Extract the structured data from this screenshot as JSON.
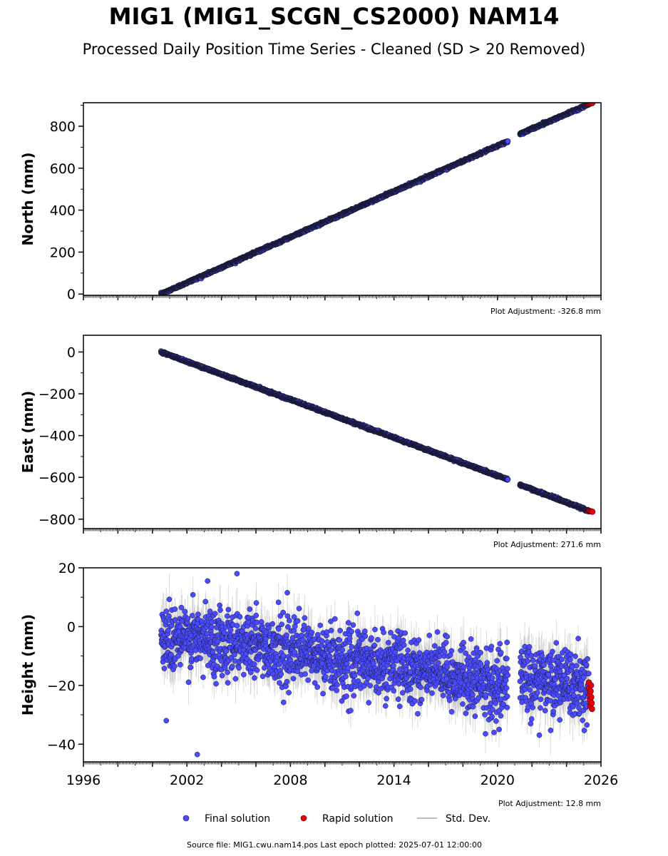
{
  "title": "MIG1 (MIG1_SCGN_CS2000) NAM14",
  "subtitle": "Processed Daily Position Time Series - Cleaned (SD > 20 Removed)",
  "source_note": "Source file: MIG1.cwu.nam14.pos  Last epoch plotted: 2025-07-01 12:00:00",
  "legend": {
    "final_label": "Final solution",
    "rapid_label": "Rapid solution",
    "std_label": "Std. Dev."
  },
  "colors": {
    "final": "#4a4aff",
    "rapid": "#e8000b",
    "std": "#bdbdbd",
    "marker_edge": "#1a1a3a"
  },
  "chart_data": [
    {
      "type": "scatter",
      "ylabel": "North (mm)",
      "plot_adjustment": "Plot Adjustment: -326.8 mm",
      "xlim": [
        1996,
        2026
      ],
      "ylim": [
        -6,
        912
      ],
      "yticks": [
        0,
        200,
        400,
        600,
        800
      ],
      "ytick_labels": [
        "0",
        "200",
        "400",
        "600",
        "800"
      ],
      "xticks": [
        1996,
        2002,
        2008,
        2014,
        2020,
        2026
      ],
      "xtick_labels": [
        "",
        "",
        "",
        "",
        "",
        ""
      ],
      "grid": false,
      "series": [
        {
          "name": "Final solution",
          "trend": [
            [
              2000.5,
              0
            ],
            [
              2020.6,
              728
            ],
            [
              2021.3,
              763
            ],
            [
              2025.3,
              905
            ]
          ],
          "gaps": [
            [
              2020.6,
              2021.3
            ]
          ]
        },
        {
          "name": "Rapid solution",
          "x": [
            2025.3,
            2025.35,
            2025.4,
            2025.45,
            2025.5
          ],
          "y": [
            906,
            908,
            909,
            910,
            911
          ]
        }
      ]
    },
    {
      "type": "scatter",
      "ylabel": "East (mm)",
      "plot_adjustment": "Plot Adjustment: 271.6 mm",
      "xlim": [
        1996,
        2026
      ],
      "ylim": [
        -845,
        80
      ],
      "yticks": [
        0,
        -200,
        -400,
        -600,
        -800
      ],
      "ytick_labels": [
        "0",
        "−200",
        "−400",
        "−600",
        "−800"
      ],
      "xticks": [
        1996,
        2002,
        2008,
        2014,
        2020,
        2026
      ],
      "xtick_labels": [
        "",
        "",
        "",
        "",
        "",
        ""
      ],
      "grid": false,
      "series": [
        {
          "name": "Final solution",
          "trend": [
            [
              2000.5,
              0
            ],
            [
              2020.6,
              -610
            ],
            [
              2021.3,
              -635
            ],
            [
              2025.3,
              -760
            ]
          ],
          "gaps": [
            [
              2020.6,
              2021.3
            ]
          ]
        },
        {
          "name": "Rapid solution",
          "x": [
            2025.3,
            2025.35,
            2025.4,
            2025.45,
            2025.5
          ],
          "y": [
            -760,
            -761,
            -762,
            -763,
            -764
          ]
        }
      ]
    },
    {
      "type": "scatter",
      "ylabel": "Height (mm)",
      "plot_adjustment": "Plot Adjustment: 12.8 mm",
      "xlim": [
        1996,
        2026
      ],
      "ylim": [
        -46,
        20
      ],
      "yticks": [
        20,
        0,
        -20,
        -40
      ],
      "ytick_labels": [
        "20",
        "0",
        "−20",
        "−40"
      ],
      "xticks": [
        1996,
        2002,
        2008,
        2014,
        2020,
        2026
      ],
      "xtick_labels": [
        "1996",
        "2002",
        "2008",
        "2014",
        "2020",
        "2026"
      ],
      "grid": false,
      "series": [
        {
          "name": "Final solution",
          "trend": [
            [
              2000.5,
              -4
            ],
            [
              2005.0,
              -5
            ],
            [
              2010.0,
              -11
            ],
            [
              2015.0,
              -14
            ],
            [
              2020.6,
              -21
            ],
            [
              2021.3,
              -17
            ],
            [
              2025.3,
              -21
            ]
          ],
          "scatter_sd": 5.5,
          "gaps": [
            [
              2020.6,
              2021.3
            ]
          ],
          "outliers_x": [
            2002.6,
            2004.9,
            2003.2,
            2000.8,
            2019.8
          ],
          "outliers_y": [
            -43.5,
            18,
            15.5,
            -32,
            -36
          ]
        },
        {
          "name": "Rapid solution",
          "x": [
            2025.3,
            2025.32,
            2025.34,
            2025.36,
            2025.38,
            2025.4,
            2025.42,
            2025.44,
            2025.46,
            2025.48
          ],
          "y": [
            -19,
            -21,
            -23,
            -25,
            -27,
            -22,
            -20,
            -24,
            -26,
            -28
          ]
        }
      ]
    }
  ]
}
